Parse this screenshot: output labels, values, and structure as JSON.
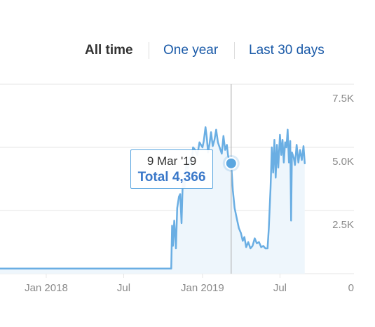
{
  "range_selector": {
    "options": [
      {
        "label": "All time",
        "active": true
      },
      {
        "label": "One year",
        "active": false
      },
      {
        "label": "Last 30 days",
        "active": false
      }
    ]
  },
  "tooltip": {
    "date": "9 Mar '19",
    "total_label": "Total 4,366",
    "value": 4366
  },
  "colors": {
    "line": "#6aaee3",
    "area": "#eef6fc",
    "grid": "#e6e6e6",
    "axis_text": "#8a8a8a",
    "crosshair": "#b8b8b8",
    "marker": "#5aa6e0"
  },
  "chart_data": {
    "type": "area",
    "y_tick_labels": [
      "0",
      "2.5K",
      "5.0K",
      "7.5K"
    ],
    "y_ticks": [
      0,
      2500,
      5000,
      7500
    ],
    "x_tick_labels": [
      "Jan 2018",
      "Jul",
      "Jan 2019",
      "Jul"
    ],
    "x_ticks": [
      "2018-01-01",
      "2018-07-01",
      "2019-01-01",
      "2019-07-01"
    ],
    "xlim": [
      "2017-09-15",
      "2019-09-30"
    ],
    "ylim": [
      0,
      7500
    ],
    "grid": true,
    "highlight": {
      "x": "2019-03-09",
      "y": 4366
    },
    "series": [
      {
        "points": [
          [
            "2017-09-15",
            200
          ],
          [
            "2018-01-01",
            200
          ],
          [
            "2018-04-01",
            200
          ],
          [
            "2018-07-01",
            200
          ],
          [
            "2018-10-01",
            200
          ],
          [
            "2018-10-20",
            200
          ],
          [
            "2018-10-22",
            1900
          ],
          [
            "2018-10-24",
            1100
          ],
          [
            "2018-10-27",
            2100
          ],
          [
            "2018-10-31",
            1000
          ],
          [
            "2018-11-03",
            2600
          ],
          [
            "2018-11-07",
            3050
          ],
          [
            "2018-11-10",
            3150
          ],
          [
            "2018-11-13",
            2000
          ],
          [
            "2018-11-16",
            3700
          ],
          [
            "2018-11-20",
            3400
          ],
          [
            "2018-11-24",
            4350
          ],
          [
            "2018-11-28",
            4150
          ],
          [
            "2018-12-02",
            4600
          ],
          [
            "2018-12-06",
            4300
          ],
          [
            "2018-12-10",
            5000
          ],
          [
            "2018-12-15",
            4900
          ],
          [
            "2018-12-20",
            4700
          ],
          [
            "2018-12-25",
            5200
          ],
          [
            "2019-01-01",
            5000
          ],
          [
            "2019-01-04",
            5250
          ],
          [
            "2019-01-08",
            5800
          ],
          [
            "2019-01-11",
            5400
          ],
          [
            "2019-01-14",
            4800
          ],
          [
            "2019-01-17",
            5100
          ],
          [
            "2019-01-21",
            5600
          ],
          [
            "2019-01-25",
            5050
          ],
          [
            "2019-01-29",
            5300
          ],
          [
            "2019-02-02",
            5700
          ],
          [
            "2019-02-06",
            5200
          ],
          [
            "2019-02-10",
            5000
          ],
          [
            "2019-02-15",
            4750
          ],
          [
            "2019-02-19",
            5450
          ],
          [
            "2019-02-23",
            4900
          ],
          [
            "2019-02-27",
            5100
          ],
          [
            "2019-03-02",
            4650
          ],
          [
            "2019-03-05",
            4500
          ],
          [
            "2019-03-09",
            4366
          ],
          [
            "2019-03-13",
            3300
          ],
          [
            "2019-03-17",
            2600
          ],
          [
            "2019-03-22",
            2200
          ],
          [
            "2019-03-27",
            1800
          ],
          [
            "2019-04-01",
            1600
          ],
          [
            "2019-04-05",
            1300
          ],
          [
            "2019-04-09",
            1450
          ],
          [
            "2019-04-13",
            1050
          ],
          [
            "2019-04-18",
            1250
          ],
          [
            "2019-04-23",
            1000
          ],
          [
            "2019-04-28",
            1100
          ],
          [
            "2019-05-03",
            1400
          ],
          [
            "2019-05-08",
            1200
          ],
          [
            "2019-05-13",
            1250
          ],
          [
            "2019-05-18",
            1050
          ],
          [
            "2019-05-23",
            1100
          ],
          [
            "2019-05-28",
            1000
          ],
          [
            "2019-06-02",
            1000
          ],
          [
            "2019-06-05",
            1800
          ],
          [
            "2019-06-09",
            3400
          ],
          [
            "2019-06-12",
            5000
          ],
          [
            "2019-06-15",
            4000
          ],
          [
            "2019-06-18",
            5300
          ],
          [
            "2019-06-21",
            3800
          ],
          [
            "2019-06-24",
            5100
          ],
          [
            "2019-06-27",
            4200
          ],
          [
            "2019-07-01",
            5500
          ],
          [
            "2019-07-04",
            4700
          ],
          [
            "2019-07-07",
            5300
          ],
          [
            "2019-07-10",
            4400
          ],
          [
            "2019-07-13",
            5200
          ],
          [
            "2019-07-16",
            5000
          ],
          [
            "2019-07-19",
            5700
          ],
          [
            "2019-07-22",
            4400
          ],
          [
            "2019-07-25",
            5250
          ],
          [
            "2019-07-27",
            2100
          ],
          [
            "2019-07-29",
            4800
          ],
          [
            "2019-08-02",
            4600
          ],
          [
            "2019-08-05",
            4300
          ],
          [
            "2019-08-09",
            5100
          ],
          [
            "2019-08-13",
            4400
          ],
          [
            "2019-08-17",
            4900
          ],
          [
            "2019-08-21",
            4500
          ],
          [
            "2019-08-25",
            5050
          ],
          [
            "2019-08-28",
            4366
          ]
        ]
      }
    ]
  }
}
